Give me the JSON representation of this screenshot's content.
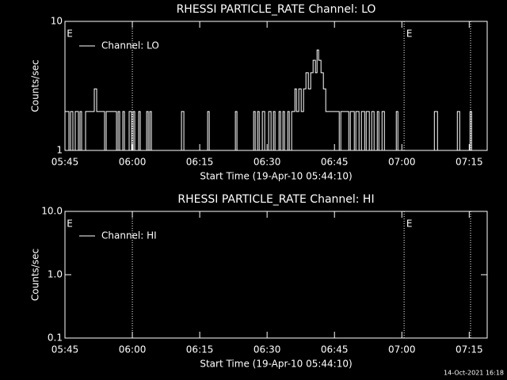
{
  "chart_data": [
    {
      "type": "line",
      "title": "RHESSI PARTICLE_RATE Channel: LO",
      "xlabel": "Start Time (19-Apr-10 05:44:10)",
      "ylabel": "Counts/sec",
      "log_y": true,
      "ylim": [
        1,
        10
      ],
      "yticks": [
        1,
        10
      ],
      "legend": "upper left",
      "xlim": [
        345,
        439
      ],
      "xticks": [
        {
          "value": 345,
          "label": "05:45"
        },
        {
          "value": 360,
          "label": "06:00"
        },
        {
          "value": 375,
          "label": "06:15"
        },
        {
          "value": 390,
          "label": "06:30"
        },
        {
          "value": 405,
          "label": "06:45"
        },
        {
          "value": 420,
          "label": "07:00"
        },
        {
          "value": 435,
          "label": "07:15"
        }
      ],
      "event_lines": [
        360,
        420.5,
        435.3
      ],
      "annotations": [
        {
          "text": "E",
          "x": 345.4
        },
        {
          "text": "E",
          "x": 421
        }
      ],
      "series": [
        {
          "name": "Channel: LO",
          "color": "#ffffff",
          "x": [
            345.0,
            345.88,
            346.24,
            346.76,
            347.29,
            348.0,
            348.35,
            348.71,
            349.59,
            351.53,
            352.06,
            353.82,
            354.18,
            356.47,
            356.82,
            357.18,
            357.88,
            358.24,
            359.29,
            359.82,
            360.18,
            360.53,
            361.41,
            361.76,
            363.18,
            363.53,
            363.88,
            364.24,
            370.94,
            371.47,
            376.76,
            377.12,
            382.94,
            383.29,
            387.0,
            387.35,
            387.88,
            388.24,
            388.94,
            389.47,
            390.35,
            390.88,
            391.41,
            391.76,
            392.65,
            393.0,
            393.53,
            393.88,
            394.59,
            394.94,
            395.47,
            396.18,
            396.53,
            397.06,
            397.59,
            398.12,
            398.65,
            399.18,
            399.71,
            400.24,
            400.76,
            401.12,
            401.47,
            402.0,
            402.53,
            403.06,
            406.06,
            406.41,
            408.18,
            408.53,
            409.41,
            409.76,
            410.47,
            411.0,
            411.71,
            412.06,
            412.76,
            413.29,
            413.82,
            414.53,
            414.88,
            415.59,
            416.12,
            418.76,
            419.12,
            427.24,
            427.94,
            432.35,
            432.88,
            435.18,
            435.53,
            439.0
          ],
          "values": [
            2,
            1,
            2,
            1,
            2,
            1,
            2,
            1,
            2,
            3,
            2,
            1,
            2,
            1,
            2,
            1,
            2,
            1,
            2,
            1,
            2,
            1,
            2,
            1,
            2,
            1,
            2,
            1,
            2,
            1,
            2,
            1,
            2,
            1,
            2,
            1,
            2,
            1,
            2,
            1,
            2,
            1,
            2,
            1,
            2,
            1,
            2,
            1,
            2,
            1,
            2,
            3,
            2,
            3,
            2,
            3,
            4,
            3,
            4,
            5,
            4,
            6,
            5,
            4,
            3,
            2,
            1,
            2,
            1,
            2,
            1,
            2,
            1,
            2,
            1,
            2,
            1,
            2,
            1,
            2,
            1,
            2,
            1,
            2,
            1,
            2,
            1,
            2,
            1,
            2,
            1,
            1
          ]
        }
      ]
    },
    {
      "type": "line",
      "title": "RHESSI PARTICLE_RATE Channel: HI",
      "xlabel": "Start Time (19-Apr-10 05:44:10)",
      "ylabel": "Counts/sec",
      "log_y": true,
      "ylim": [
        0.1,
        10
      ],
      "yticks": [
        0.1,
        {
          "value": 1,
          "label": "1.0"
        },
        {
          "value": 10,
          "label": "10.0"
        }
      ],
      "legend": "upper left",
      "xlim": [
        345,
        439
      ],
      "xticks": [
        {
          "value": 345,
          "label": "05:45"
        },
        {
          "value": 360,
          "label": "06:00"
        },
        {
          "value": 375,
          "label": "06:15"
        },
        {
          "value": 390,
          "label": "06:30"
        },
        {
          "value": 405,
          "label": "06:45"
        },
        {
          "value": 420,
          "label": "07:00"
        },
        {
          "value": 435,
          "label": "07:15"
        }
      ],
      "event_lines": [
        360,
        420.5,
        435.3
      ],
      "annotations": [
        {
          "text": "E",
          "x": 345.4
        },
        {
          "text": "E",
          "x": 421
        }
      ],
      "series": [
        {
          "name": "Channel: HI",
          "color": "#ffffff",
          "x": [],
          "values": []
        }
      ]
    }
  ],
  "footer": "14-Oct-2021 16:18"
}
